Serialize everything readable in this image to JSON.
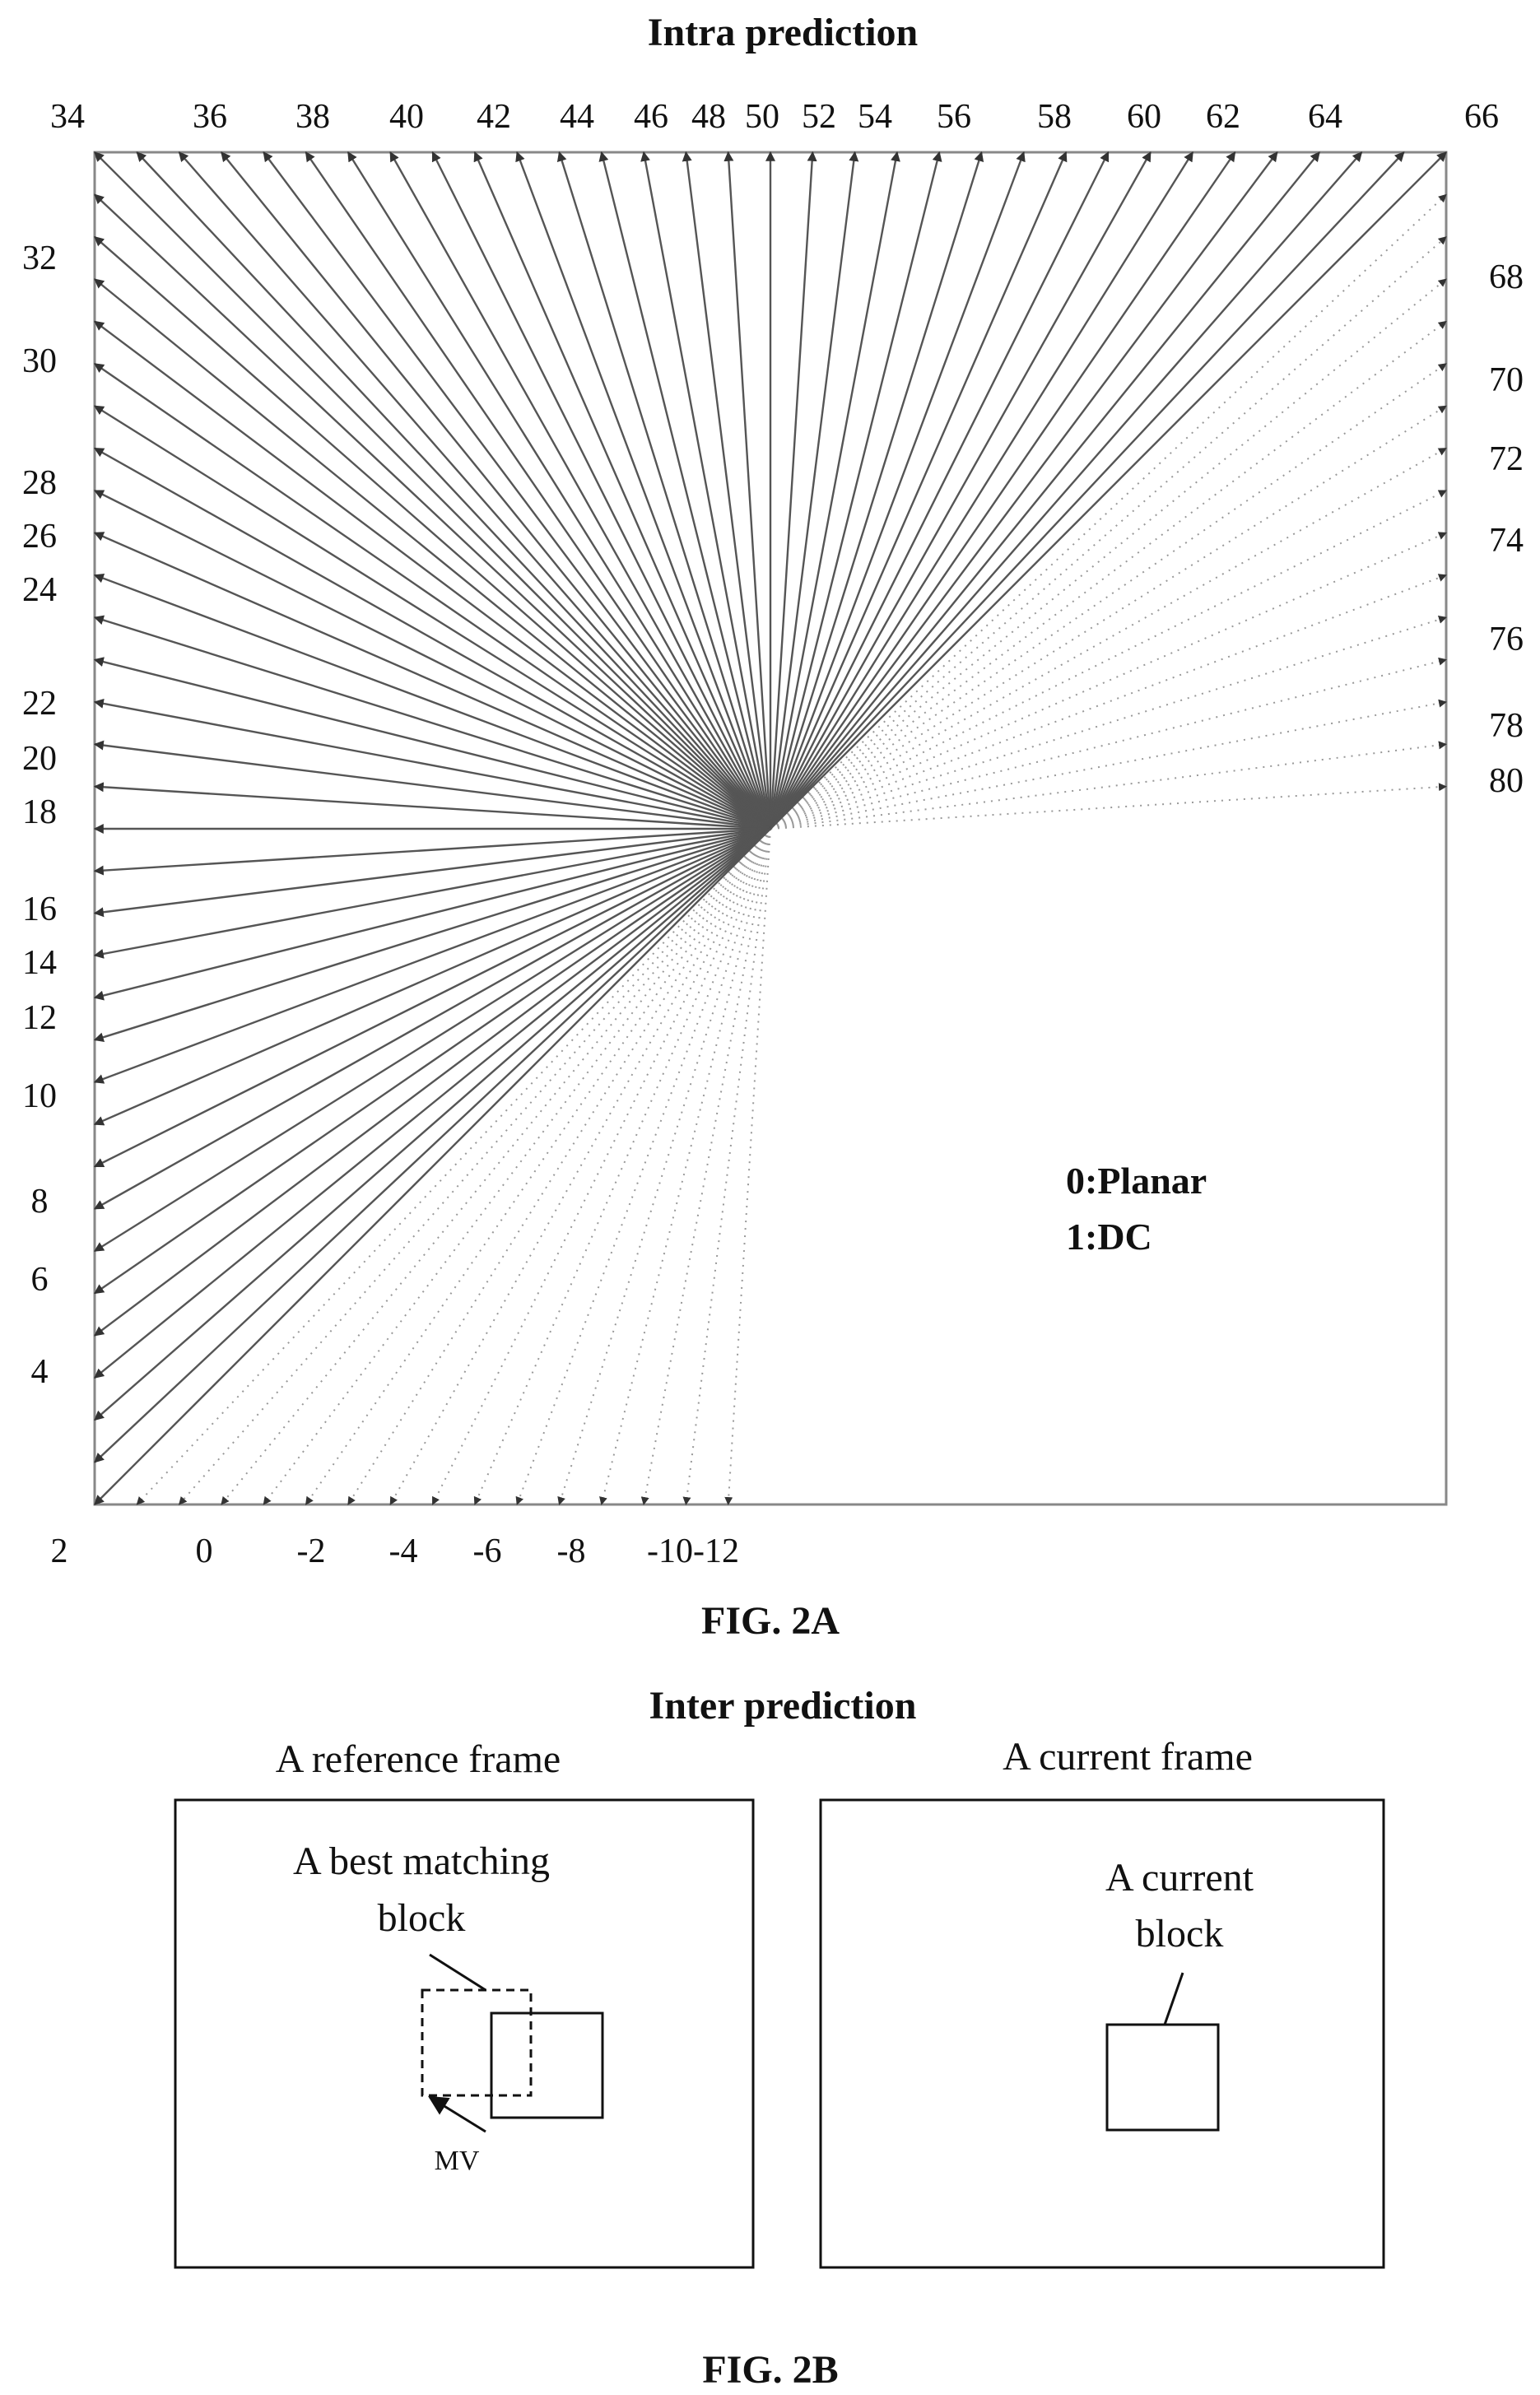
{
  "fig2a": {
    "title": "Intra prediction",
    "caption": "FIG. 2A",
    "legend": [
      "0:Planar",
      "1:DC"
    ],
    "top_labels": [
      "34",
      "36",
      "38",
      "40",
      "42",
      "44",
      "46",
      "48",
      "50",
      "52",
      "54",
      "56",
      "58",
      "60",
      "62",
      "64",
      "66"
    ],
    "left_labels": [
      "32",
      "30",
      "28",
      "26",
      "24",
      "22",
      "20",
      "18",
      "16",
      "14",
      "12",
      "10",
      "8",
      "6",
      "4"
    ],
    "right_labels": [
      "68",
      "70",
      "72",
      "74",
      "76",
      "78",
      "80"
    ],
    "bottom_labels": [
      "2",
      "0",
      "-2",
      "-4",
      "-6",
      "-8",
      "-10-12"
    ]
  },
  "fig2b": {
    "title": "Inter prediction",
    "caption": "FIG. 2B",
    "reference_frame_label": "A reference frame",
    "current_frame_label": "A current frame",
    "best_block_label": [
      "A best matching",
      "block"
    ],
    "current_block_label": [
      "A current",
      "block"
    ],
    "mv_label": "MV"
  }
}
